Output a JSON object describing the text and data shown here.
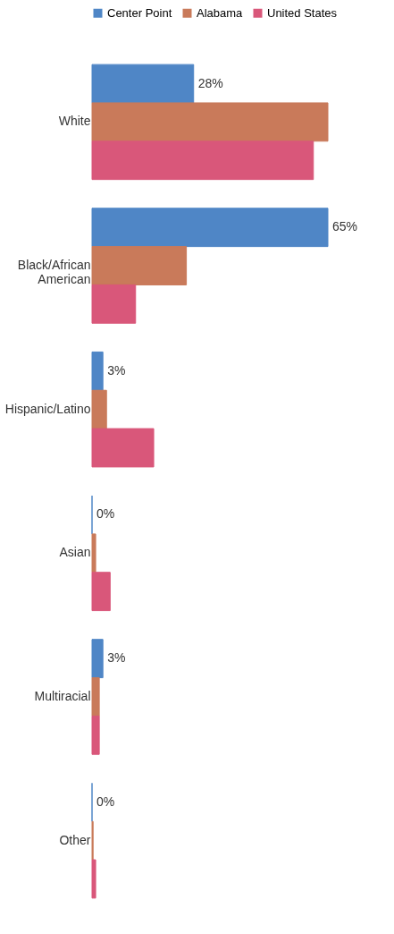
{
  "chart_data": {
    "type": "bar",
    "orientation": "horizontal",
    "categories": [
      "White",
      "Black/African American",
      "Hispanic/Latino",
      "Asian",
      "Multiracial",
      "Other"
    ],
    "series": [
      {
        "name": "Center Point",
        "color": "#4f86c6",
        "values": [
          28,
          65,
          3,
          0,
          3,
          0
        ],
        "value_labels": [
          "28%",
          "65%",
          "3%",
          "0%",
          "3%",
          "0%"
        ]
      },
      {
        "name": "Alabama",
        "color": "#c97a5a",
        "values": [
          65,
          26,
          4,
          1,
          2,
          0.3
        ]
      },
      {
        "name": "United States",
        "color": "#d9577a",
        "values": [
          61,
          12,
          17,
          5,
          2,
          1
        ]
      }
    ],
    "legend": "top",
    "grid": false
  }
}
